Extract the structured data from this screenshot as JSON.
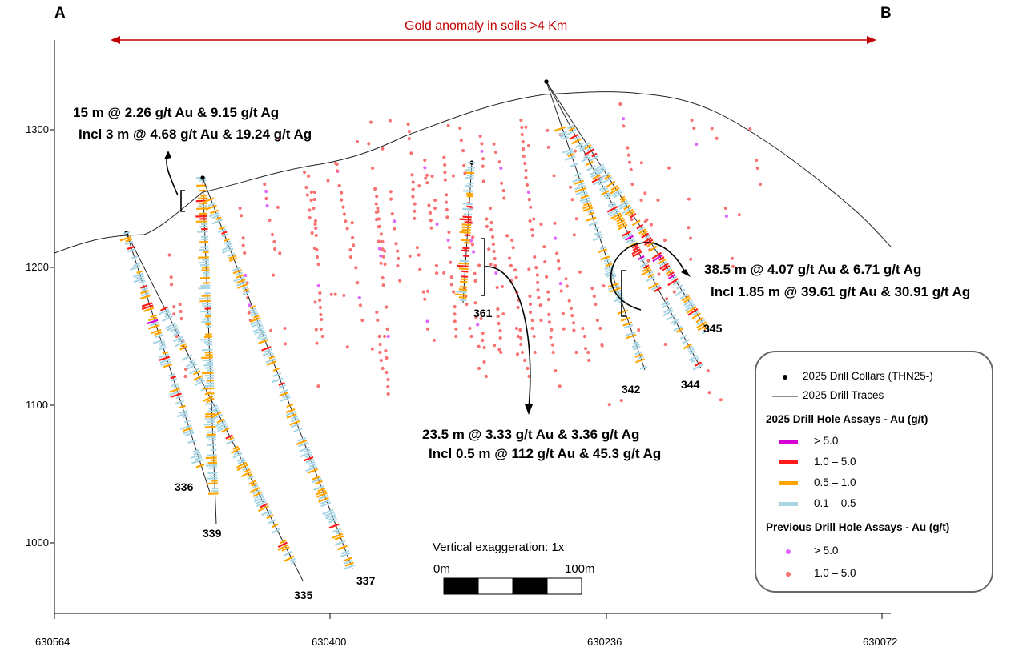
{
  "section": {
    "corner_left": "A",
    "corner_right": "B",
    "soil_anomaly": "Gold anomaly in soils  >4 Km",
    "colors": {
      "au_gt5": "#d400d4",
      "au_1_5": "#ff1a1a",
      "au_05_1": "#ffa500",
      "au_01_05": "#a9d6e5",
      "prev_gt5": "#e066ff",
      "prev_1_5": "#f87171",
      "anomaly_arrow": "#c00000"
    }
  },
  "axes": {
    "y_ticks": [
      "1300",
      "1200",
      "1100",
      "1000"
    ],
    "x_ticks": [
      "630564",
      "630400",
      "630236",
      "630072"
    ]
  },
  "holes": {
    "h335": "335",
    "h336": "336",
    "h337": "337",
    "h339": "339",
    "h342": "342",
    "h344": "344",
    "h345": "345",
    "h361": "361"
  },
  "annotations": {
    "a1_line1": "15 m @ 2.26 g/t Au & 9.15 g/t Ag",
    "a1_line2": "Incl 3 m @  4.68 g/t Au & 19.24 g/t Ag",
    "a2_line1": "23.5 m @ 3.33 g/t Au & 3.36 g/t Ag",
    "a2_line2": "Incl 0.5 m @ 112 g/t Au & 45.3 g/t Ag",
    "a3_line1": "38.5 m @ 4.07 g/t Au & 6.71 g/t Ag",
    "a3_line2": "Incl 1.85 m @  39.61 g/t Au & 30.91 g/t Ag"
  },
  "scale": {
    "title": "Vertical exaggeration: 1x",
    "left": "0m",
    "right": "100m"
  },
  "legend": {
    "collars": "2025 Drill Collars (THN25-)",
    "traces": "2025 Drill Traces",
    "new_heading": "2025 Drill Hole Assays - Au (g/t)",
    "new_gt5": "> 5.0",
    "new_1_5": "1.0 – 5.0",
    "new_05_1": "0.5 – 1.0",
    "new_01_05": "0.1 – 0.5",
    "prev_heading": "Previous Drill Hole Assays - Au (g/t)",
    "prev_gt5": "> 5.0",
    "prev_1_5": "1.0 – 5.0"
  }
}
